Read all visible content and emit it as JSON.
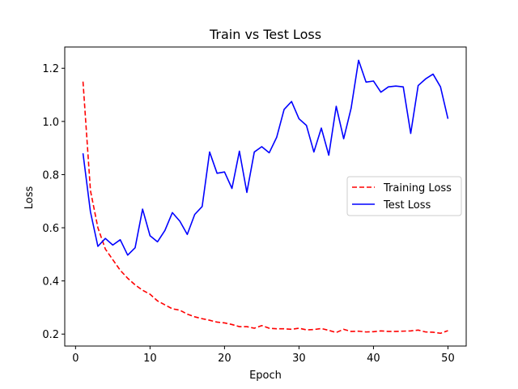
{
  "chart_data": {
    "type": "line",
    "title": "Train vs Test Loss",
    "xlabel": "Epoch",
    "ylabel": "Loss",
    "xlim": [
      -1.45,
      52.45
    ],
    "ylim": [
      0.155,
      1.28
    ],
    "xticks": [
      0,
      10,
      20,
      30,
      40,
      50
    ],
    "yticks": [
      0.2,
      0.4,
      0.6,
      0.8,
      1.0,
      1.2
    ],
    "ytick_labels": [
      "0.2",
      "0.4",
      "0.6",
      "0.8",
      "1.0",
      "1.2"
    ],
    "grid": false,
    "legend_position": "center-right",
    "x": [
      1,
      2,
      3,
      4,
      5,
      6,
      7,
      8,
      9,
      10,
      11,
      12,
      13,
      14,
      15,
      16,
      17,
      18,
      19,
      20,
      21,
      22,
      23,
      24,
      25,
      26,
      27,
      28,
      29,
      30,
      31,
      32,
      33,
      34,
      35,
      36,
      37,
      38,
      39,
      40,
      41,
      42,
      43,
      44,
      45,
      46,
      47,
      48,
      49,
      50
    ],
    "series": [
      {
        "name": "Training Loss",
        "color": "#ff0000",
        "dash": "dashed",
        "values": [
          1.15,
          0.74,
          0.6,
          0.52,
          0.48,
          0.44,
          0.41,
          0.385,
          0.365,
          0.35,
          0.325,
          0.31,
          0.295,
          0.29,
          0.275,
          0.265,
          0.258,
          0.252,
          0.245,
          0.242,
          0.236,
          0.228,
          0.228,
          0.222,
          0.232,
          0.222,
          0.22,
          0.22,
          0.218,
          0.222,
          0.216,
          0.217,
          0.221,
          0.214,
          0.206,
          0.218,
          0.21,
          0.211,
          0.208,
          0.209,
          0.212,
          0.21,
          0.21,
          0.211,
          0.212,
          0.215,
          0.208,
          0.207,
          0.203,
          0.213
        ]
      },
      {
        "name": "Test Loss",
        "color": "#0000ff",
        "dash": "solid",
        "values": [
          0.88,
          0.66,
          0.53,
          0.56,
          0.535,
          0.555,
          0.497,
          0.525,
          0.67,
          0.57,
          0.547,
          0.59,
          0.657,
          0.625,
          0.575,
          0.65,
          0.68,
          0.885,
          0.805,
          0.81,
          0.748,
          0.888,
          0.733,
          0.885,
          0.905,
          0.882,
          0.94,
          1.045,
          1.075,
          1.01,
          0.985,
          0.885,
          0.975,
          0.873,
          1.057,
          0.935,
          1.05,
          1.23,
          1.148,
          1.152,
          1.11,
          1.13,
          1.133,
          1.13,
          0.955,
          1.135,
          1.16,
          1.178,
          1.13,
          1.01
        ]
      }
    ]
  }
}
